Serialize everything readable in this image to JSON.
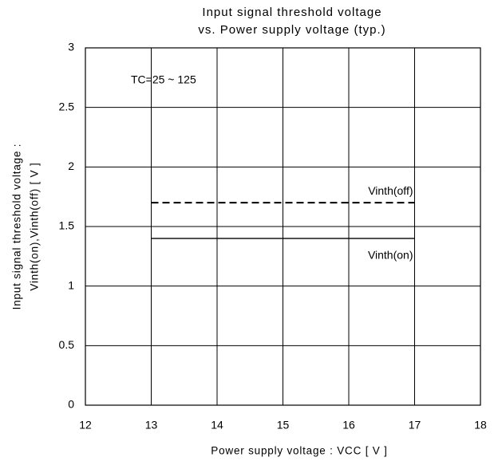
{
  "chart_data": {
    "type": "line",
    "title": [
      "Input signal threshold voltage",
      "vs. Power supply voltage (typ.)"
    ],
    "x_label": "Power supply voltage : VCC [ V ]",
    "y_label": [
      "Input signal threshold voltage :",
      "Vinth(on),Vinth(off) [ V ]"
    ],
    "annotation": "TC=25 ~ 125",
    "x": [
      13,
      17
    ],
    "series": [
      {
        "name": "Vinth(off)",
        "color": "#000000",
        "dashed": true,
        "values": [
          1.7,
          1.7
        ]
      },
      {
        "name": "Vinth(on)",
        "color": "#000000",
        "dashed": false,
        "values": [
          1.4,
          1.4
        ]
      }
    ],
    "xlim": [
      12,
      18
    ],
    "xticks": [
      12,
      13,
      14,
      15,
      16,
      17,
      18
    ],
    "ylim": [
      0,
      3
    ],
    "yticks": [
      0,
      0.5,
      1,
      1.5,
      2,
      2.5,
      3
    ],
    "grid": true
  }
}
